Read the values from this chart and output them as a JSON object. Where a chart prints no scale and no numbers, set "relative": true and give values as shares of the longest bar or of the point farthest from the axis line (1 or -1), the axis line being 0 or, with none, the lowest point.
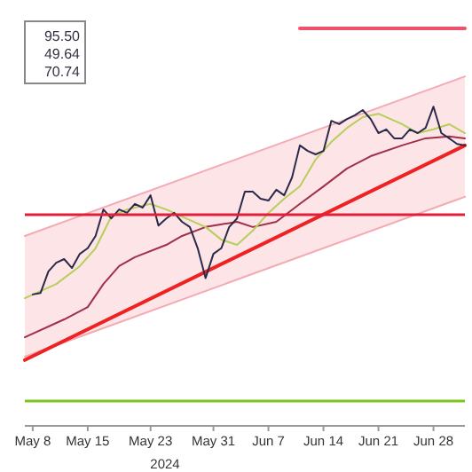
{
  "chart_data": {
    "type": "line",
    "relative": true,
    "xlabel": "2024",
    "xlim": [
      "2024-05-07",
      "2024-07-02"
    ],
    "xticks": [
      {
        "value": "2024-05-08",
        "label": "May 8"
      },
      {
        "value": "2024-05-15",
        "label": "May 15"
      },
      {
        "value": "2024-05-23",
        "label": "May 23"
      },
      {
        "value": "2024-05-31",
        "label": "May 31"
      },
      {
        "value": "2024-06-07",
        "label": "Jun 7"
      },
      {
        "value": "2024-06-14",
        "label": "Jun 14"
      },
      {
        "value": "2024-06-21",
        "label": "Jun 21"
      },
      {
        "value": "2024-06-28",
        "label": "Jun 28"
      }
    ],
    "grid": false,
    "annotations": [
      "95.50",
      "49.64",
      "70.74"
    ],
    "ref_lines": [
      {
        "axis": "y",
        "value": 0.5,
        "color": "#e0203a"
      },
      {
        "axis": "y",
        "value": 0,
        "color": "#7cc520"
      }
    ],
    "series": [
      {
        "type": "line",
        "color": "#fde4e6",
        "x": [
          "2024-05-07",
          "2024-07-02"
        ],
        "values": [
          null,
          null
        ],
        "lower": [
          0.119,
          0.548
        ],
        "upper": [
          0.443,
          0.871
        ]
      },
      {
        "type": "line",
        "color": "#f4aab2",
        "x": [
          "2024-05-07",
          "2024-07-02"
        ],
        "values": [
          0.119,
          0.548
        ]
      },
      {
        "type": "line",
        "color": "#f4aab2",
        "x": [
          "2024-05-07",
          "2024-07-02"
        ],
        "values": [
          0.443,
          0.871
        ]
      },
      {
        "type": "line",
        "color": "#f0506a",
        "x": [
          "2024-06-11",
          "2024-07-02"
        ],
        "values": [
          1,
          1
        ]
      },
      {
        "type": "line",
        "color": "#ee2222",
        "x": [
          "2024-05-07",
          "2024-07-02"
        ],
        "values": [
          0.11,
          0.686
        ]
      },
      {
        "type": "line",
        "color": "#a0304a",
        "x": [
          "2024-05-07",
          "2024-05-12",
          "2024-05-15",
          "2024-05-17",
          "2024-05-19",
          "2024-05-21",
          "2024-05-25",
          "2024-05-27",
          "2024-05-30",
          "2024-06-03",
          "2024-06-05",
          "2024-06-08",
          "2024-06-11",
          "2024-06-14",
          "2024-06-17",
          "2024-06-20",
          "2024-06-24",
          "2024-06-27",
          "2024-06-30",
          "2024-07-02"
        ],
        "values": [
          0.171,
          0.219,
          0.252,
          0.314,
          0.362,
          0.386,
          0.419,
          0.443,
          0.467,
          0.481,
          0.467,
          0.481,
          0.529,
          0.576,
          0.624,
          0.657,
          0.686,
          0.705,
          0.71,
          0.705
        ]
      },
      {
        "type": "line",
        "color": "#b5cf5a",
        "x": [
          "2024-05-07",
          "2024-05-11",
          "2024-05-14",
          "2024-05-16",
          "2024-05-18",
          "2024-05-20",
          "2024-05-23",
          "2024-05-25",
          "2024-05-27",
          "2024-05-30",
          "2024-06-01",
          "2024-06-03",
          "2024-06-05",
          "2024-06-07",
          "2024-06-09",
          "2024-06-11",
          "2024-06-13",
          "2024-06-15",
          "2024-06-17",
          "2024-06-19",
          "2024-06-21",
          "2024-06-24",
          "2024-06-26",
          "2024-06-28",
          "2024-06-30",
          "2024-07-02"
        ],
        "values": [
          0.276,
          0.314,
          0.362,
          0.41,
          0.495,
          0.514,
          0.529,
          0.514,
          0.495,
          0.467,
          0.433,
          0.419,
          0.457,
          0.505,
          0.543,
          0.576,
          0.648,
          0.695,
          0.733,
          0.762,
          0.771,
          0.743,
          0.719,
          0.729,
          0.743,
          0.719
        ]
      },
      {
        "type": "line",
        "color": "#2a2a4a",
        "x": [
          "2024-05-08",
          "2024-05-09",
          "2024-05-10",
          "2024-05-11",
          "2024-05-12",
          "2024-05-13",
          "2024-05-14",
          "2024-05-15",
          "2024-05-16",
          "2024-05-17",
          "2024-05-18",
          "2024-05-19",
          "2024-05-20",
          "2024-05-21",
          "2024-05-22",
          "2024-05-23",
          "2024-05-24",
          "2024-05-25",
          "2024-05-26",
          "2024-05-27",
          "2024-05-28",
          "2024-05-29",
          "2024-05-30",
          "2024-05-31",
          "2024-06-01",
          "2024-06-02",
          "2024-06-03",
          "2024-06-04",
          "2024-06-05",
          "2024-06-06",
          "2024-06-07",
          "2024-06-08",
          "2024-06-09",
          "2024-06-10",
          "2024-06-11",
          "2024-06-12",
          "2024-06-13",
          "2024-06-14",
          "2024-06-15",
          "2024-06-16",
          "2024-06-17",
          "2024-06-18",
          "2024-06-19",
          "2024-06-20",
          "2024-06-21",
          "2024-06-22",
          "2024-06-23",
          "2024-06-24",
          "2024-06-25",
          "2024-06-26",
          "2024-06-27",
          "2024-06-28",
          "2024-06-29",
          "2024-06-30",
          "2024-07-01",
          "2024-07-02"
        ],
        "values": [
          0.286,
          0.29,
          0.348,
          0.371,
          0.381,
          0.357,
          0.395,
          0.41,
          0.443,
          0.514,
          0.49,
          0.514,
          0.505,
          0.529,
          0.519,
          0.552,
          0.471,
          0.49,
          0.505,
          0.481,
          0.467,
          0.41,
          0.33,
          0.395,
          0.41,
          0.467,
          0.49,
          0.562,
          0.562,
          0.543,
          0.538,
          0.567,
          0.552,
          0.6,
          0.686,
          0.671,
          0.662,
          0.671,
          0.752,
          0.743,
          0.757,
          0.767,
          0.781,
          0.757,
          0.719,
          0.729,
          0.705,
          0.705,
          0.729,
          0.719,
          0.733,
          0.79,
          0.719,
          0.705,
          0.69,
          0.686
        ]
      }
    ]
  }
}
